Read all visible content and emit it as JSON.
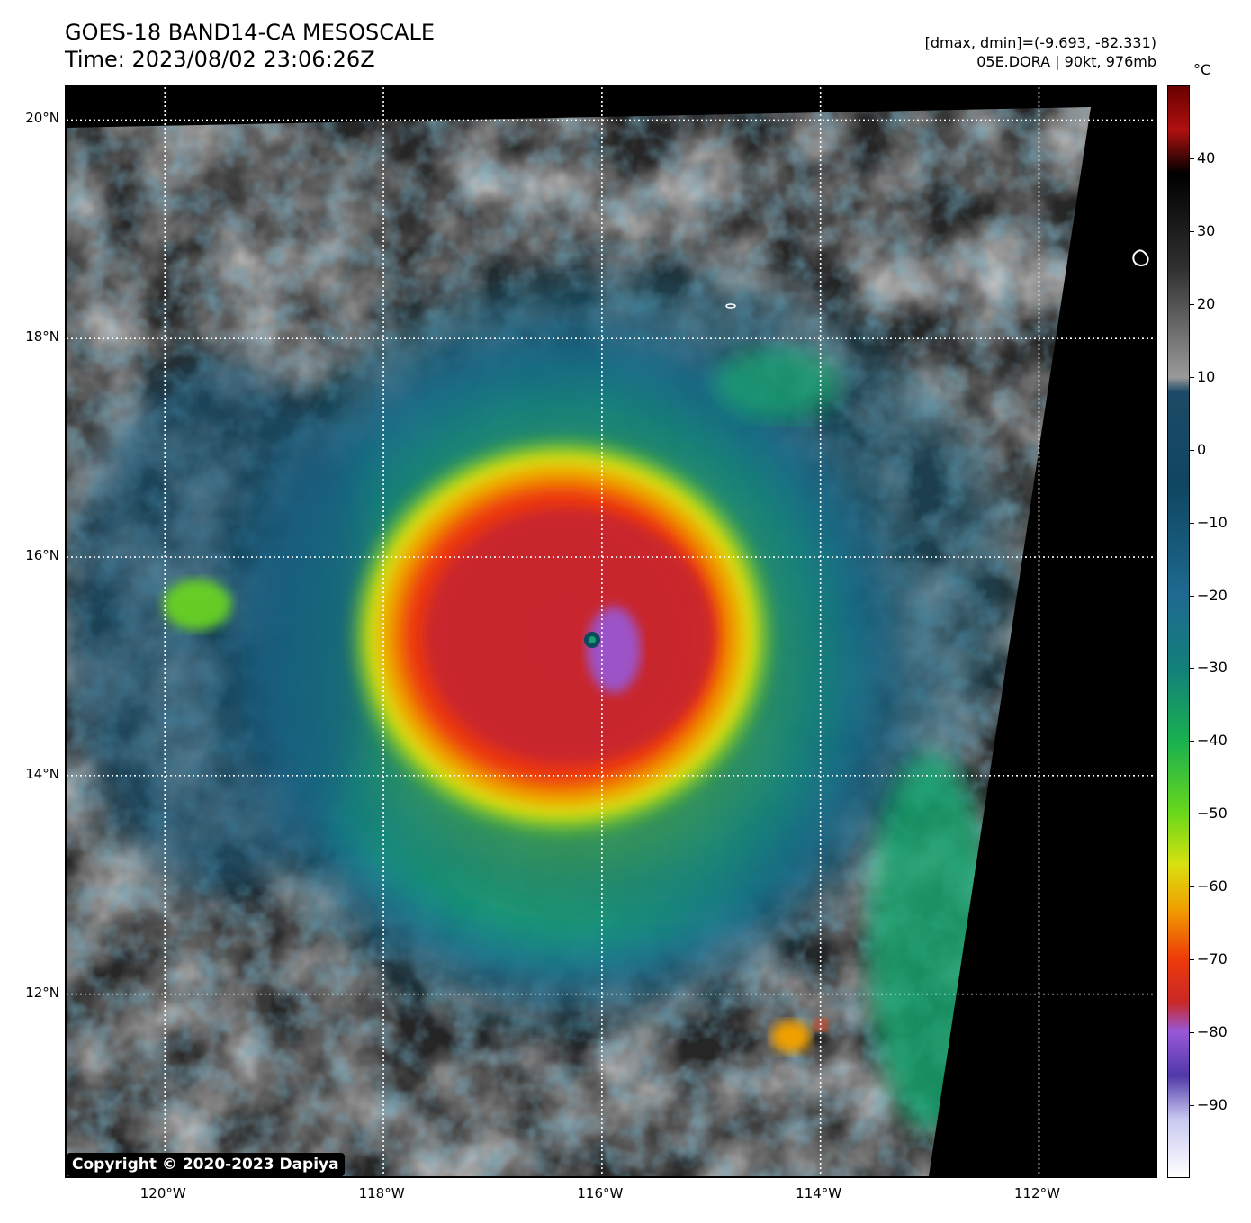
{
  "header": {
    "title_line1": "GOES-18 BAND14-CA MESOSCALE",
    "title_line2": "Time: 2023/08/02 23:06:26Z",
    "info_line1": "[dmax, dmin]=(-9.693, -82.331)",
    "info_line2": "05E.DORA | 90kt, 976mb"
  },
  "map": {
    "lon_range": [
      -120.9,
      -110.9
    ],
    "lat_range": [
      10.3,
      20.3
    ],
    "lat_ticks": [
      {
        "value": 20,
        "label": "20°N"
      },
      {
        "value": 18,
        "label": "18°N"
      },
      {
        "value": 16,
        "label": "16°N"
      },
      {
        "value": 14,
        "label": "14°N"
      },
      {
        "value": 12,
        "label": "12°N"
      }
    ],
    "lon_ticks": [
      {
        "value": -120,
        "label": "120°W"
      },
      {
        "value": -118,
        "label": "118°W"
      },
      {
        "value": -116,
        "label": "116°W"
      },
      {
        "value": -114,
        "label": "114°W"
      },
      {
        "value": -112,
        "label": "112°W"
      }
    ],
    "storm_center": {
      "lon": -116.02,
      "lat": 15.3
    },
    "grid_color": "#ffffff",
    "coastline_color": "#ffffff"
  },
  "copyright": "Copyright © 2020-2023 Dapiya",
  "colorbar": {
    "unit": "°C",
    "range": [
      -100,
      50
    ],
    "ticks": [
      {
        "value": 40,
        "label": "40"
      },
      {
        "value": 30,
        "label": "30"
      },
      {
        "value": 20,
        "label": "20"
      },
      {
        "value": 10,
        "label": "10"
      },
      {
        "value": 0,
        "label": "0"
      },
      {
        "value": -10,
        "label": "−10"
      },
      {
        "value": -20,
        "label": "−20"
      },
      {
        "value": -30,
        "label": "−30"
      },
      {
        "value": -40,
        "label": "−40"
      },
      {
        "value": -50,
        "label": "−50"
      },
      {
        "value": -60,
        "label": "−60"
      },
      {
        "value": -70,
        "label": "−70"
      },
      {
        "value": -80,
        "label": "−80"
      },
      {
        "value": -90,
        "label": "−90"
      }
    ],
    "color_stops": [
      {
        "value": 50,
        "color": "#6a0000"
      },
      {
        "value": 44,
        "color": "#b01010"
      },
      {
        "value": 38,
        "color": "#000000"
      },
      {
        "value": 25,
        "color": "#303030"
      },
      {
        "value": 10,
        "color": "#9a9a9a"
      },
      {
        "value": 8,
        "color": "#1d4a66"
      },
      {
        "value": -5,
        "color": "#0f4660"
      },
      {
        "value": -20,
        "color": "#1e6a90"
      },
      {
        "value": -30,
        "color": "#12807a"
      },
      {
        "value": -40,
        "color": "#18b050"
      },
      {
        "value": -50,
        "color": "#6ad81a"
      },
      {
        "value": -57,
        "color": "#d8e010"
      },
      {
        "value": -63,
        "color": "#f0a000"
      },
      {
        "value": -70,
        "color": "#ee3a0a"
      },
      {
        "value": -76,
        "color": "#c82828"
      },
      {
        "value": -80,
        "color": "#9858d8"
      },
      {
        "value": -86,
        "color": "#5038a8"
      },
      {
        "value": -92,
        "color": "#c8c8f0"
      },
      {
        "value": -100,
        "color": "#ffffff"
      }
    ]
  }
}
